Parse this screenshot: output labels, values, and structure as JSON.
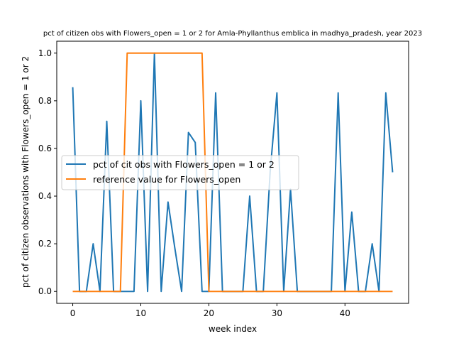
{
  "chart_data": {
    "type": "line",
    "title": "pct of citizen obs with Flowers_open = 1 or 2 for Amla-Phyllanthus emblica in madhya_pradesh, year 2023",
    "xlabel": "week index",
    "ylabel": "pct of citizen observations with Flowers_open = 1 or 2",
    "xlim": [
      -2.35,
      49.35
    ],
    "ylim": [
      -0.05,
      1.05
    ],
    "xticks": [
      0,
      10,
      20,
      30,
      40
    ],
    "yticks": [
      0.0,
      0.2,
      0.4,
      0.6,
      0.8,
      1.0
    ],
    "xtick_labels": [
      "0",
      "10",
      "20",
      "30",
      "40"
    ],
    "ytick_labels": [
      "0.0",
      "0.2",
      "0.4",
      "0.6",
      "0.8",
      "1.0"
    ],
    "grid": false,
    "legend_position": "center-left",
    "series": [
      {
        "name": "pct of cit obs with Flowers_open = 1 or 2",
        "color": "#1f77b4",
        "x": [
          0,
          1,
          2,
          3,
          4,
          5,
          6,
          7,
          8,
          9,
          10,
          11,
          12,
          13,
          14,
          15,
          16,
          17,
          18,
          19,
          20,
          21,
          22,
          23,
          24,
          25,
          26,
          27,
          28,
          29,
          30,
          31,
          32,
          33,
          34,
          35,
          36,
          37,
          38,
          39,
          40,
          41,
          42,
          43,
          44,
          45,
          46,
          47
        ],
        "y": [
          0.857,
          0,
          0,
          0.2,
          0,
          0.714,
          0,
          0,
          0,
          0,
          0.8,
          0,
          1.0,
          0,
          0.375,
          0.182,
          0,
          0.667,
          0.625,
          0,
          0,
          0.833,
          0,
          0,
          0,
          0,
          0.4,
          0,
          0,
          0.5,
          0.833,
          0,
          0.429,
          0,
          0,
          0,
          0,
          0,
          0,
          0.833,
          0,
          0.333,
          0,
          0,
          0.2,
          0,
          0.833,
          0.5
        ]
      },
      {
        "name": "reference value for Flowers_open",
        "color": "#ff7f0e",
        "x": [
          0,
          1,
          2,
          3,
          4,
          5,
          6,
          7,
          8,
          9,
          10,
          11,
          12,
          13,
          14,
          15,
          16,
          17,
          18,
          19,
          20,
          21,
          22,
          23,
          24,
          25,
          26,
          27,
          28,
          29,
          30,
          31,
          32,
          33,
          34,
          35,
          36,
          37,
          38,
          39,
          40,
          41,
          42,
          43,
          44,
          45,
          46,
          47
        ],
        "y": [
          0,
          0,
          0,
          0,
          0,
          0,
          0,
          0,
          1,
          1,
          1,
          1,
          1,
          1,
          1,
          1,
          1,
          1,
          1,
          1,
          0,
          0,
          0,
          0,
          0,
          0,
          0,
          0,
          0,
          0,
          0,
          0,
          0,
          0,
          0,
          0,
          0,
          0,
          0,
          0,
          0,
          0,
          0,
          0,
          0,
          0,
          0,
          0
        ]
      }
    ]
  }
}
